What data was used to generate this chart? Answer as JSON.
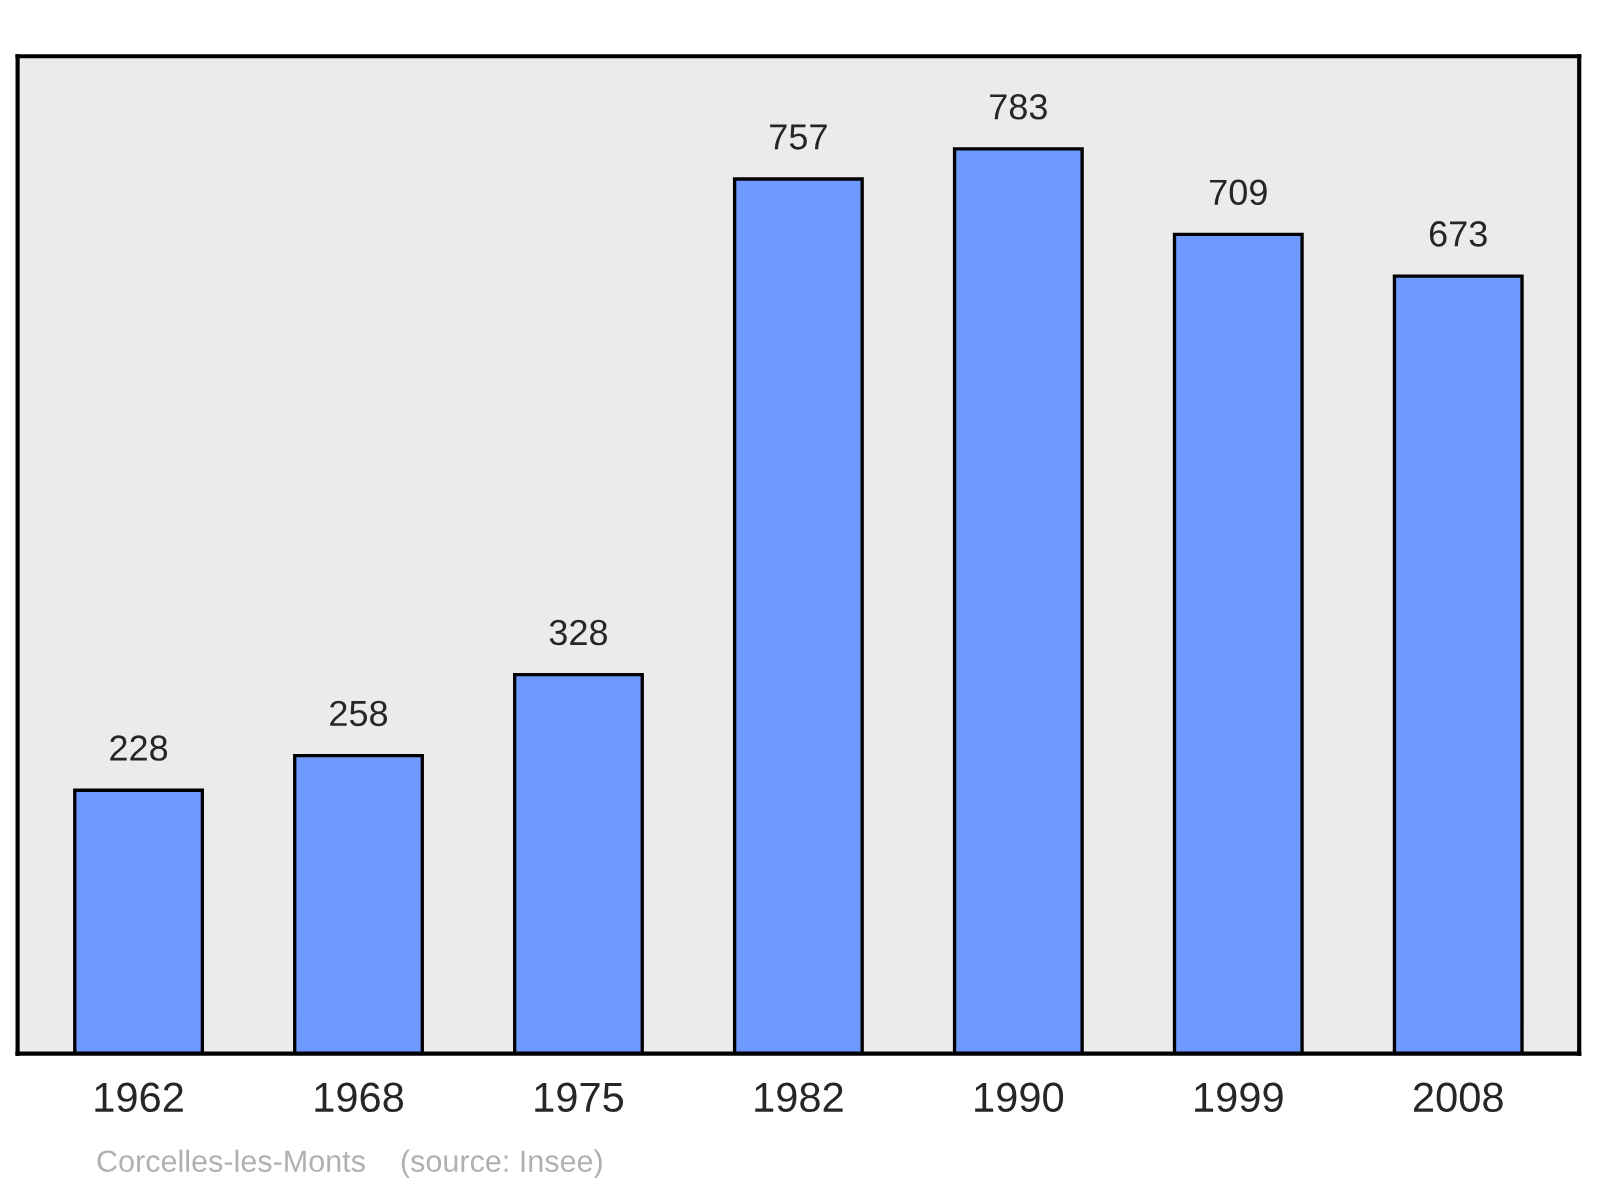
{
  "chart_data": {
    "type": "bar",
    "categories": [
      "1962",
      "1968",
      "1975",
      "1982",
      "1990",
      "1999",
      "2008"
    ],
    "values": [
      228,
      258,
      328,
      757,
      783,
      709,
      673
    ],
    "color": "#7099ff",
    "data_labels": true,
    "grid": false,
    "tick_labels": "x",
    "annotations": [
      "Corcelles-les-Monts    (source: Insee)"
    ]
  }
}
